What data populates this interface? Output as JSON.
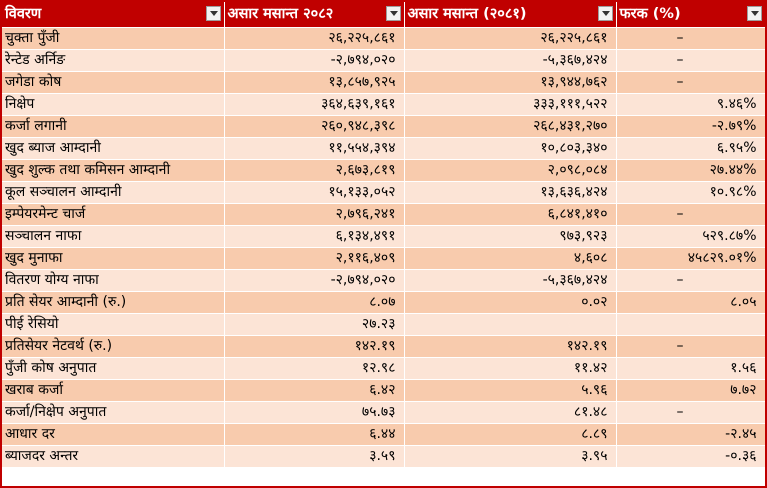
{
  "headers": [
    {
      "label": "विवरण"
    },
    {
      "label": "असार मसान्त २०८२"
    },
    {
      "label": "असार मसान्त (२०८१)"
    },
    {
      "label": "फरक (%)"
    }
  ],
  "rows": [
    {
      "label": "चुक्ता पुँजी",
      "v2082": "२६,२२५,८६१",
      "v2081": "२६,२२५,८६१",
      "diff": "–"
    },
    {
      "label": "रेन्टेड अर्निङ",
      "v2082": "-२,७९४,०२०",
      "v2081": "-५,३६७,४२४",
      "diff": "–"
    },
    {
      "label": "जगेडा कोष",
      "v2082": "१३,८५७,९२५",
      "v2081": "१३,९४४,७६२",
      "diff": "–"
    },
    {
      "label": "निक्षेप",
      "v2082": "३६४,६३९,१६१",
      "v2081": "३३३,१११,५२२",
      "diff": "९.४६%"
    },
    {
      "label": "कर्जा लगानी",
      "v2082": "२६०,९४८,३९८",
      "v2081": "२६८,४३१,२७०",
      "diff": "-२.७९%"
    },
    {
      "label": "खुद ब्याज आम्दानी",
      "v2082": "११,५५४,३९४",
      "v2081": "१०,८०३,३४०",
      "diff": "६.९५%"
    },
    {
      "label": "खुद शुल्क तथा कमिसन आम्दानी",
      "v2082": "२,६७३,८१९",
      "v2081": "२,०९८,०८४",
      "diff": "२७.४४%"
    },
    {
      "label": "कूल सञ्चालन आम्दानी",
      "v2082": "१५,१३३,०५२",
      "v2081": "१३,६३६,४२४",
      "diff": "१०.९८%"
    },
    {
      "label": "इम्पेयरमेन्ट चार्ज",
      "v2082": "२,७९६,२४१",
      "v2081": "६,८४१,४१०",
      "diff": "–"
    },
    {
      "label": "सञ्चालन नाफा",
      "v2082": "६,१३४,४९१",
      "v2081": "९७३,९२३",
      "diff": "५२९.८७%"
    },
    {
      "label": "खुद मुनाफा",
      "v2082": "२,११६,४०९",
      "v2081": "४,६०८",
      "diff": "४५८२९.०१%"
    },
    {
      "label": "वितरण योग्य नाफा",
      "v2082": "-२,७९४,०२०",
      "v2081": "-५,३६७,४२४",
      "diff": "–"
    },
    {
      "label": "प्रति सेयर आम्दानी  (रु.)",
      "v2082": "८.०७",
      "v2081": "०.०२",
      "diff": "८.०५"
    },
    {
      "label": "पीई रेसियो",
      "v2082": "२७.२३",
      "v2081": "",
      "diff": ""
    },
    {
      "label": "प्रतिसेयर नेटवर्थ (रु.)",
      "v2082": "१४२.१९",
      "v2081": "१४२.१९",
      "diff": "–"
    },
    {
      "label": "पुँजी कोष अनुपात",
      "v2082": "१२.९८",
      "v2081": "११.४२",
      "diff": "१.५६"
    },
    {
      "label": "खराब कर्जा",
      "v2082": "६.४२",
      "v2081": "५.९६",
      "diff": "७.७२"
    },
    {
      "label": "कर्जा/निक्षेप अनुपात",
      "v2082": "७५.७३",
      "v2081": "८१.४८",
      "diff": "–"
    },
    {
      "label": "आधार दर",
      "v2082": "६.४४",
      "v2081": "८.८९",
      "diff": "-२.४५"
    },
    {
      "label": "ब्याजदर अन्तर",
      "v2082": "३.५९",
      "v2081": "३.९५",
      "diff": "-०.३६"
    }
  ]
}
